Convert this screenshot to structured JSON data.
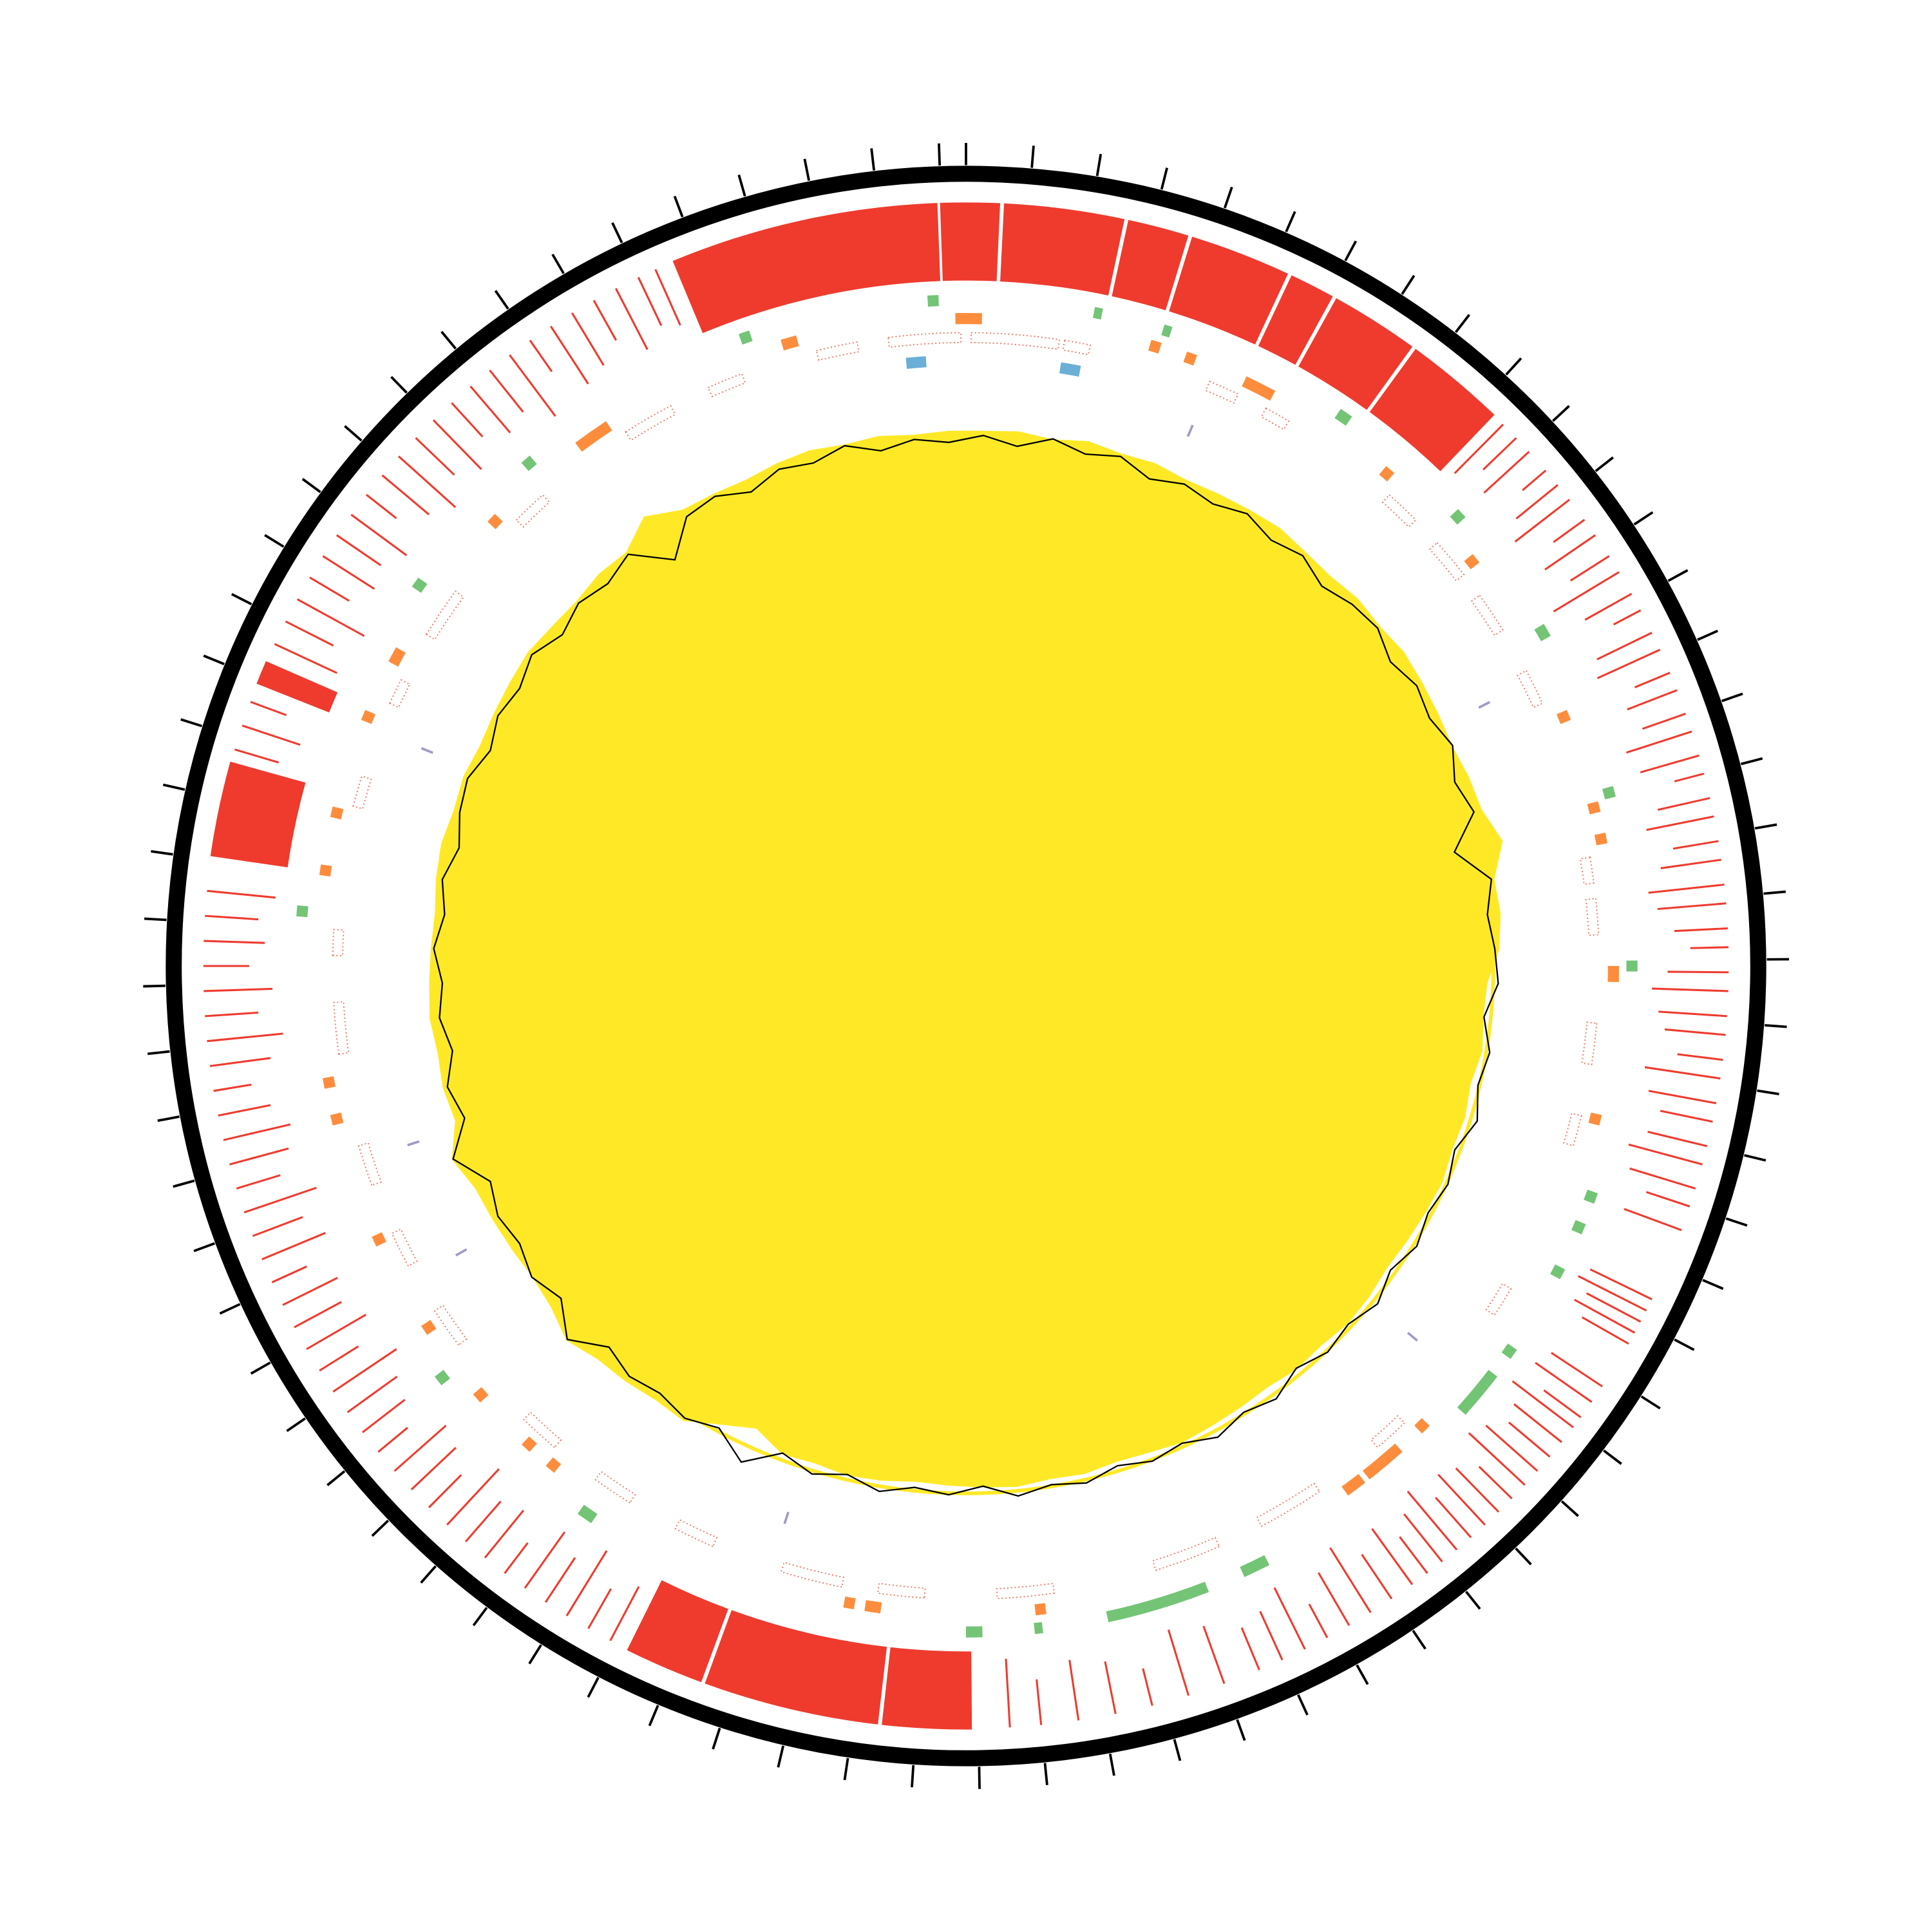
{
  "chart_data": {
    "type": "circos",
    "xlim": [
      0,
      76.4
    ],
    "xticks": [
      0,
      1,
      2,
      3,
      4,
      5,
      6,
      7,
      8,
      9,
      10,
      11,
      12,
      13,
      14,
      15,
      16,
      17,
      18,
      19,
      20,
      21,
      22,
      23,
      24,
      25,
      26,
      27,
      28,
      29,
      30,
      31,
      32,
      33,
      34,
      35,
      36,
      37,
      38,
      39,
      40,
      41,
      42,
      43,
      44,
      45,
      46,
      47,
      48,
      49,
      50,
      51,
      52,
      53,
      54,
      55,
      56,
      57,
      58,
      59,
      60,
      61,
      62,
      63,
      64,
      65,
      66,
      67,
      68,
      69,
      70,
      71,
      72,
      73,
      74,
      75,
      76
    ],
    "ring_color": "#000000",
    "block_color": "#ee3b2e",
    "blocks": [
      [
        71.6,
        75.95
      ],
      [
        75.98,
        0.55
      ],
      [
        0.6,
        2.55
      ],
      [
        2.6,
        3.6
      ],
      [
        3.65,
        5.3
      ],
      [
        5.35,
        6.1
      ],
      [
        6.15,
        7.6
      ],
      [
        7.65,
        9.3
      ],
      [
        59.05,
        60.6
      ],
      [
        61.9,
        62.3
      ],
      [
        38.1,
        39.55
      ],
      [
        39.6,
        42.45
      ],
      [
        42.5,
        43.8
      ]
    ],
    "lines": {
      "color": "#ee3b2e",
      "positions": [
        9.5,
        9.8,
        10.1,
        10.5,
        10.8,
        11.1,
        11.5,
        11.8,
        12.2,
        12.5,
        12.9,
        13.2,
        13.6,
        13.9,
        14.3,
        14.6,
        15.0,
        15.3,
        15.7,
        16.0,
        16.4,
        16.7,
        17.1,
        17.4,
        17.8,
        18.1,
        18.5,
        18.8,
        19.2,
        19.5,
        19.9,
        20.2,
        20.6,
        20.9,
        21.3,
        21.6,
        22.0,
        22.3,
        22.7,
        23.0,
        23.4,
        24.6,
        24.8,
        25.0,
        25.2,
        25.4,
        26.2,
        26.5,
        26.8,
        27.0,
        27.3,
        27.6,
        27.9,
        28.2,
        28.5,
        28.8,
        29.1,
        29.4,
        29.7,
        30.0,
        30.3,
        30.6,
        31.0,
        31.4,
        31.8,
        32.2,
        32.6,
        33.0,
        33.4,
        34.0,
        34.6,
        35.2,
        35.8,
        36.4,
        37.0,
        37.5,
        44.1,
        44.5,
        44.9,
        45.3,
        45.7,
        46.1,
        46.5,
        46.9,
        47.3,
        47.7,
        48.1,
        48.5,
        48.9,
        49.3,
        49.7,
        50.1,
        50.5,
        50.9,
        51.3,
        51.7,
        52.1,
        52.5,
        52.9,
        53.3,
        53.7,
        54.1,
        54.5,
        54.9,
        55.3,
        55.7,
        56.1,
        56.5,
        56.9,
        57.3,
        57.7,
        58.1,
        58.5,
        60.8,
        61.2,
        61.6,
        62.6,
        63.0,
        63.4,
        63.8,
        64.2,
        64.6,
        65.0,
        65.4,
        65.8,
        66.2,
        66.6,
        67.0,
        67.4,
        67.8,
        68.2,
        68.6,
        69.0,
        69.4,
        69.8,
        70.2,
        70.6,
        71.0,
        71.3
      ],
      "heights": [
        0.9,
        0.6,
        0.8,
        0.4,
        0.7,
        0.9,
        0.5,
        0.8,
        0.6,
        1.0,
        0.7,
        0.4,
        0.8,
        0.9,
        0.5,
        0.7,
        0.6,
        0.9,
        0.8,
        0.4,
        0.7,
        0.9,
        0.6,
        0.8,
        1.0,
        0.9,
        0.7,
        0.5,
        0.8,
        1.0,
        0.9,
        0.8,
        0.6,
        1.0,
        0.9,
        0.7,
        0.8,
        1.0,
        0.9,
        0.6,
        0.8,
        0.9,
        1.0,
        0.8,
        0.9,
        0.7,
        0.8,
        0.9,
        0.6,
        1.0,
        0.8,
        0.7,
        0.9,
        1.0,
        0.6,
        0.8,
        0.9,
        0.7,
        1.0,
        0.8,
        0.6,
        0.9,
        0.7,
        1.0,
        0.8,
        0.5,
        0.9,
        0.7,
        0.6,
        0.8,
        0.9,
        0.5,
        0.7,
        0.8,
        0.6,
        0.9,
        0.8,
        0.6,
        1.0,
        0.7,
        0.9,
        0.5,
        0.8,
        0.7,
        1.0,
        0.6,
        0.8,
        0.9,
        0.5,
        0.7,
        0.8,
        1.0,
        0.6,
        0.9,
        0.7,
        0.8,
        0.5,
        0.9,
        0.7,
        1.0,
        0.6,
        0.8,
        0.9,
        0.7,
        0.5,
        0.8,
        1.0,
        0.7,
        0.9,
        0.6,
        0.8,
        0.7,
        0.9,
        0.6,
        0.8,
        0.5,
        0.9,
        0.7,
        1.0,
        0.6,
        0.8,
        0.7,
        0.9,
        0.5,
        0.8,
        1.0,
        0.7,
        0.9,
        0.6,
        0.8,
        0.7,
        1.0,
        0.5,
        0.9,
        0.8,
        0.6,
        0.9,
        0.7,
        0.8
      ]
    },
    "features": [
      {
        "color": "#74c476",
        "intervals": [
          [
            75.7,
            75.9
          ],
          [
            2.35,
            2.5
          ],
          [
            3.65,
            3.8
          ],
          [
            7.2,
            7.45
          ],
          [
            10.0,
            10.2
          ],
          [
            12.6,
            12.85
          ],
          [
            15.8,
            16.0
          ],
          [
            19.0,
            19.2
          ],
          [
            23.3,
            23.5
          ],
          [
            23.9,
            24.1
          ],
          [
            24.8,
            25.0
          ],
          [
            26.5,
            26.7
          ],
          [
            27.1,
            28.0
          ],
          [
            32.5,
            33.0
          ],
          [
            33.7,
            35.6
          ],
          [
            36.8,
            36.95
          ],
          [
            37.9,
            38.2
          ],
          [
            45.4,
            45.7
          ],
          [
            49.1,
            49.3
          ],
          [
            58.2,
            58.4
          ],
          [
            64.6,
            64.8
          ],
          [
            67.6,
            67.8
          ],
          [
            72.2,
            72.4
          ]
        ]
      },
      {
        "color": "#fd8d3c",
        "intervals": [
          [
            72.9,
            73.2
          ],
          [
            68.6,
            69.3
          ],
          [
            66.4,
            66.6
          ],
          [
            63.2,
            63.5
          ],
          [
            62.0,
            62.2
          ],
          [
            60.1,
            60.3
          ],
          [
            59.0,
            59.2
          ],
          [
            55.0,
            55.2
          ],
          [
            54.3,
            54.5
          ],
          [
            51.9,
            52.1
          ],
          [
            50.0,
            50.2
          ],
          [
            48.4,
            48.6
          ],
          [
            47.1,
            47.3
          ],
          [
            46.5,
            46.7
          ],
          [
            39.8,
            40.1
          ],
          [
            40.3,
            40.5
          ],
          [
            36.7,
            36.9
          ],
          [
            30.2,
            30.6
          ],
          [
            29.3,
            30.1
          ],
          [
            28.6,
            28.8
          ],
          [
            21.9,
            22.1
          ],
          [
            19.1,
            19.4
          ],
          [
            16.6,
            16.8
          ],
          [
            16.0,
            16.2
          ],
          [
            14.2,
            14.4
          ],
          [
            10.8,
            11.0
          ],
          [
            8.5,
            8.7
          ],
          [
            5.4,
            6.0
          ],
          [
            4.2,
            4.4
          ],
          [
            3.5,
            3.7
          ],
          [
            76.2,
            76.4
          ],
          [
            0.0,
            0.3
          ]
        ]
      },
      {
        "color": "#f4705e",
        "intervals": [
          [
            74.9,
            76.3
          ],
          [
            0.1,
            1.8
          ],
          [
            1.9,
            2.4
          ],
          [
            4.8,
            5.4
          ],
          [
            6.0,
            6.5
          ],
          [
            8.9,
            9.6
          ],
          [
            10.2,
            11.0
          ],
          [
            11.5,
            12.3
          ],
          [
            13.2,
            13.9
          ],
          [
            17.0,
            17.5
          ],
          [
            17.8,
            18.5
          ],
          [
            20.2,
            21.0
          ],
          [
            22.0,
            22.6
          ],
          [
            25.6,
            26.2
          ],
          [
            28.9,
            29.6
          ],
          [
            31.0,
            32.3
          ],
          [
            33.2,
            34.5
          ],
          [
            36.5,
            37.6
          ],
          [
            39.0,
            39.9
          ],
          [
            40.6,
            41.8
          ],
          [
            43.2,
            44.0
          ],
          [
            45.0,
            45.8
          ],
          [
            46.8,
            47.6
          ],
          [
            49.5,
            50.3
          ],
          [
            51.3,
            52.0
          ],
          [
            53.0,
            53.8
          ],
          [
            55.6,
            56.6
          ],
          [
            57.5,
            58.0
          ],
          [
            60.4,
            61.0
          ],
          [
            62.5,
            63.0
          ],
          [
            64.0,
            65.0
          ],
          [
            66.8,
            67.5
          ],
          [
            69.5,
            70.5
          ],
          [
            71.3,
            72.0
          ],
          [
            73.5,
            74.3
          ]
        ]
      },
      {
        "color": "#6baed6",
        "intervals": [
          [
            75.2,
            75.6
          ],
          [
            1.9,
            2.3
          ]
        ]
      },
      {
        "color": "#9e9ac8",
        "intervals": [
          [
            4.8,
            4.85
          ],
          [
            61.9,
            61.95
          ],
          [
            13.4,
            13.45
          ],
          [
            53.5,
            53.55
          ],
          [
            51.0,
            51.05
          ],
          [
            27.5,
            27.55
          ],
          [
            42.0,
            42.05
          ]
        ]
      }
    ],
    "skew": {
      "color": "#ffe927",
      "values": [
        0.4,
        0.5,
        0.3,
        0.6,
        0.4,
        0.5,
        0.3,
        0.4,
        0.5,
        0.6,
        0.4,
        0.3,
        0.5,
        0.4,
        0.6,
        0.5,
        0.4,
        0.3,
        0.5,
        0.6,
        1.3,
        0.4,
        0.5,
        0.3,
        -0.4,
        -0.5,
        -0.3,
        -0.6,
        -0.4,
        -0.5,
        -0.3,
        -0.4,
        -0.5,
        -0.6,
        -0.4,
        -0.3,
        -0.5,
        -0.4,
        -0.6,
        -0.5,
        -0.4,
        -0.3,
        -0.5,
        -0.6,
        -0.4,
        -0.5,
        -0.3,
        -0.4,
        -0.5,
        -0.6,
        -0.4,
        -0.3,
        -0.5,
        -0.4,
        -1.2,
        -0.5,
        0.4,
        0.3,
        0.5,
        0.6,
        1.1,
        0.5,
        0.3,
        0.4,
        0.5,
        0.6,
        1.2,
        0.3,
        0.5,
        0.4,
        0.6,
        0.5,
        0.4,
        0.3,
        0.5,
        0.6,
        0.4,
        0.5,
        0.3,
        0.4,
        0.5,
        0.6,
        0.4,
        0.3,
        0.5,
        0.4,
        1.4,
        0.5,
        0.4,
        0.3,
        0.5,
        0.6,
        0.4,
        0.5,
        0.3,
        0.4
      ]
    },
    "gc": {
      "color": "#000000",
      "values": [
        0.2,
        -0.3,
        0.4,
        -0.1,
        0.3,
        -0.4,
        0.1,
        -0.2,
        0.3,
        -0.2,
        0.2,
        -0.4,
        0.1,
        0.3,
        -0.3,
        0.2,
        -0.1,
        0.4,
        -0.3,
        0.2,
        -1.5,
        0.3,
        -0.2,
        0.1,
        0.3,
        -0.4,
        0.2,
        -0.1,
        0.4,
        -0.3,
        0.1,
        -0.2,
        0.2,
        -0.3,
        0.3,
        -0.2,
        0.1,
        -0.4,
        0.3,
        -0.1,
        0.4,
        -0.2,
        0.1,
        -0.3,
        0.2,
        -0.1,
        0.3,
        -0.4,
        0.1,
        -0.2,
        0.3,
        -0.3,
        0.2,
        -0.4,
        1.0,
        -0.2,
        0.3,
        -0.1,
        0.2,
        -0.3,
        1.1,
        -0.2,
        0.4,
        -0.1,
        0.2,
        -0.3,
        1.2,
        -0.2,
        0.3,
        -0.4,
        0.1,
        -0.2,
        0.3,
        -0.2,
        0.2,
        -0.4,
        0.1,
        0.3,
        -0.3,
        0.2,
        -0.1,
        0.4,
        -0.3,
        0.2,
        -0.2,
        0.3,
        -1.6,
        0.1,
        0.3,
        -0.4,
        0.2,
        -0.1,
        0.4,
        -0.3,
        0.1,
        -0.2
      ]
    }
  }
}
